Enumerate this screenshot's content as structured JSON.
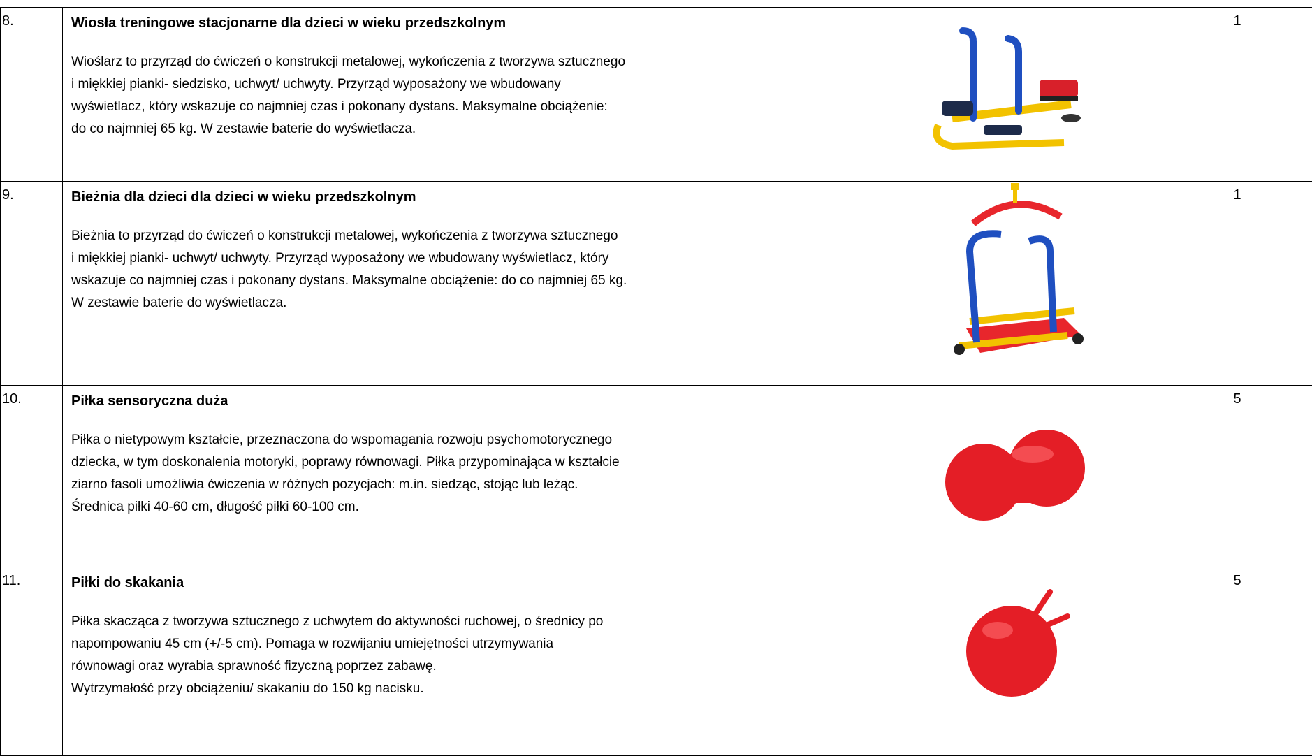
{
  "table": {
    "rows": [
      {
        "number": "8.",
        "title": "Wiosła treningowe stacjonarne dla dzieci w wieku przedszkolnym",
        "description": [
          "Wioślarz to przyrząd do ćwiczeń o konstrukcji metalowej, wykończenia z tworzywa sztucznego",
          "i miękkiej pianki- siedzisko, uchwyt/ uchwyty. Przyrząd wyposażony we wbudowany",
          "wyświetlacz, który wskazuje co najmniej czas i pokonany dystans.  Maksymalne obciążenie:",
          "do co najmniej 65 kg.  W zestawie baterie do wyświetlacza."
        ],
        "quantity": "1"
      },
      {
        "number": "9.",
        "title": "Bieżnia dla dzieci dla dzieci w wieku przedszkolnym",
        "description": [
          "Bieżnia to przyrząd do ćwiczeń o konstrukcji metalowej, wykończenia z tworzywa sztucznego",
          "i miękkiej pianki- uchwyt/ uchwyty. Przyrząd wyposażony we wbudowany wyświetlacz, który",
          "wskazuje co najmniej czas i pokonany dystans.  Maksymalne obciążenie: do co najmniej 65 kg.",
          "W zestawie baterie do wyświetlacza."
        ],
        "quantity": "1"
      },
      {
        "number": "10.",
        "title": "Piłka sensoryczna duża",
        "description": [
          "Piłka o nietypowym kształcie, przeznaczona do wspomagania rozwoju psychomotorycznego",
          "dziecka, w tym doskonalenia motoryki, poprawy równowagi. Piłka przypominająca w kształcie",
          "ziarno fasoli umożliwia ćwiczenia w różnych pozycjach: m.in.  siedząc, stojąc lub leżąc.",
          "Średnica piłki 40-60 cm, długość piłki 60-100 cm."
        ],
        "quantity": "5"
      },
      {
        "number": "11.",
        "title": "Piłki do skakania",
        "description": [
          "Piłka skacząca z tworzywa sztucznego z uchwytem do aktywności ruchowej, o średnicy po",
          "napompowaniu 45 cm (+/-5 cm).  Pomaga w rozwijaniu umiejętności utrzymywania",
          "równowagi oraz wyrabia sprawność fizyczną poprzez zabawę.",
          "Wytrzymałość przy obciążeniu/ skakaniu do 150 kg nacisku."
        ],
        "quantity": "5"
      }
    ]
  }
}
